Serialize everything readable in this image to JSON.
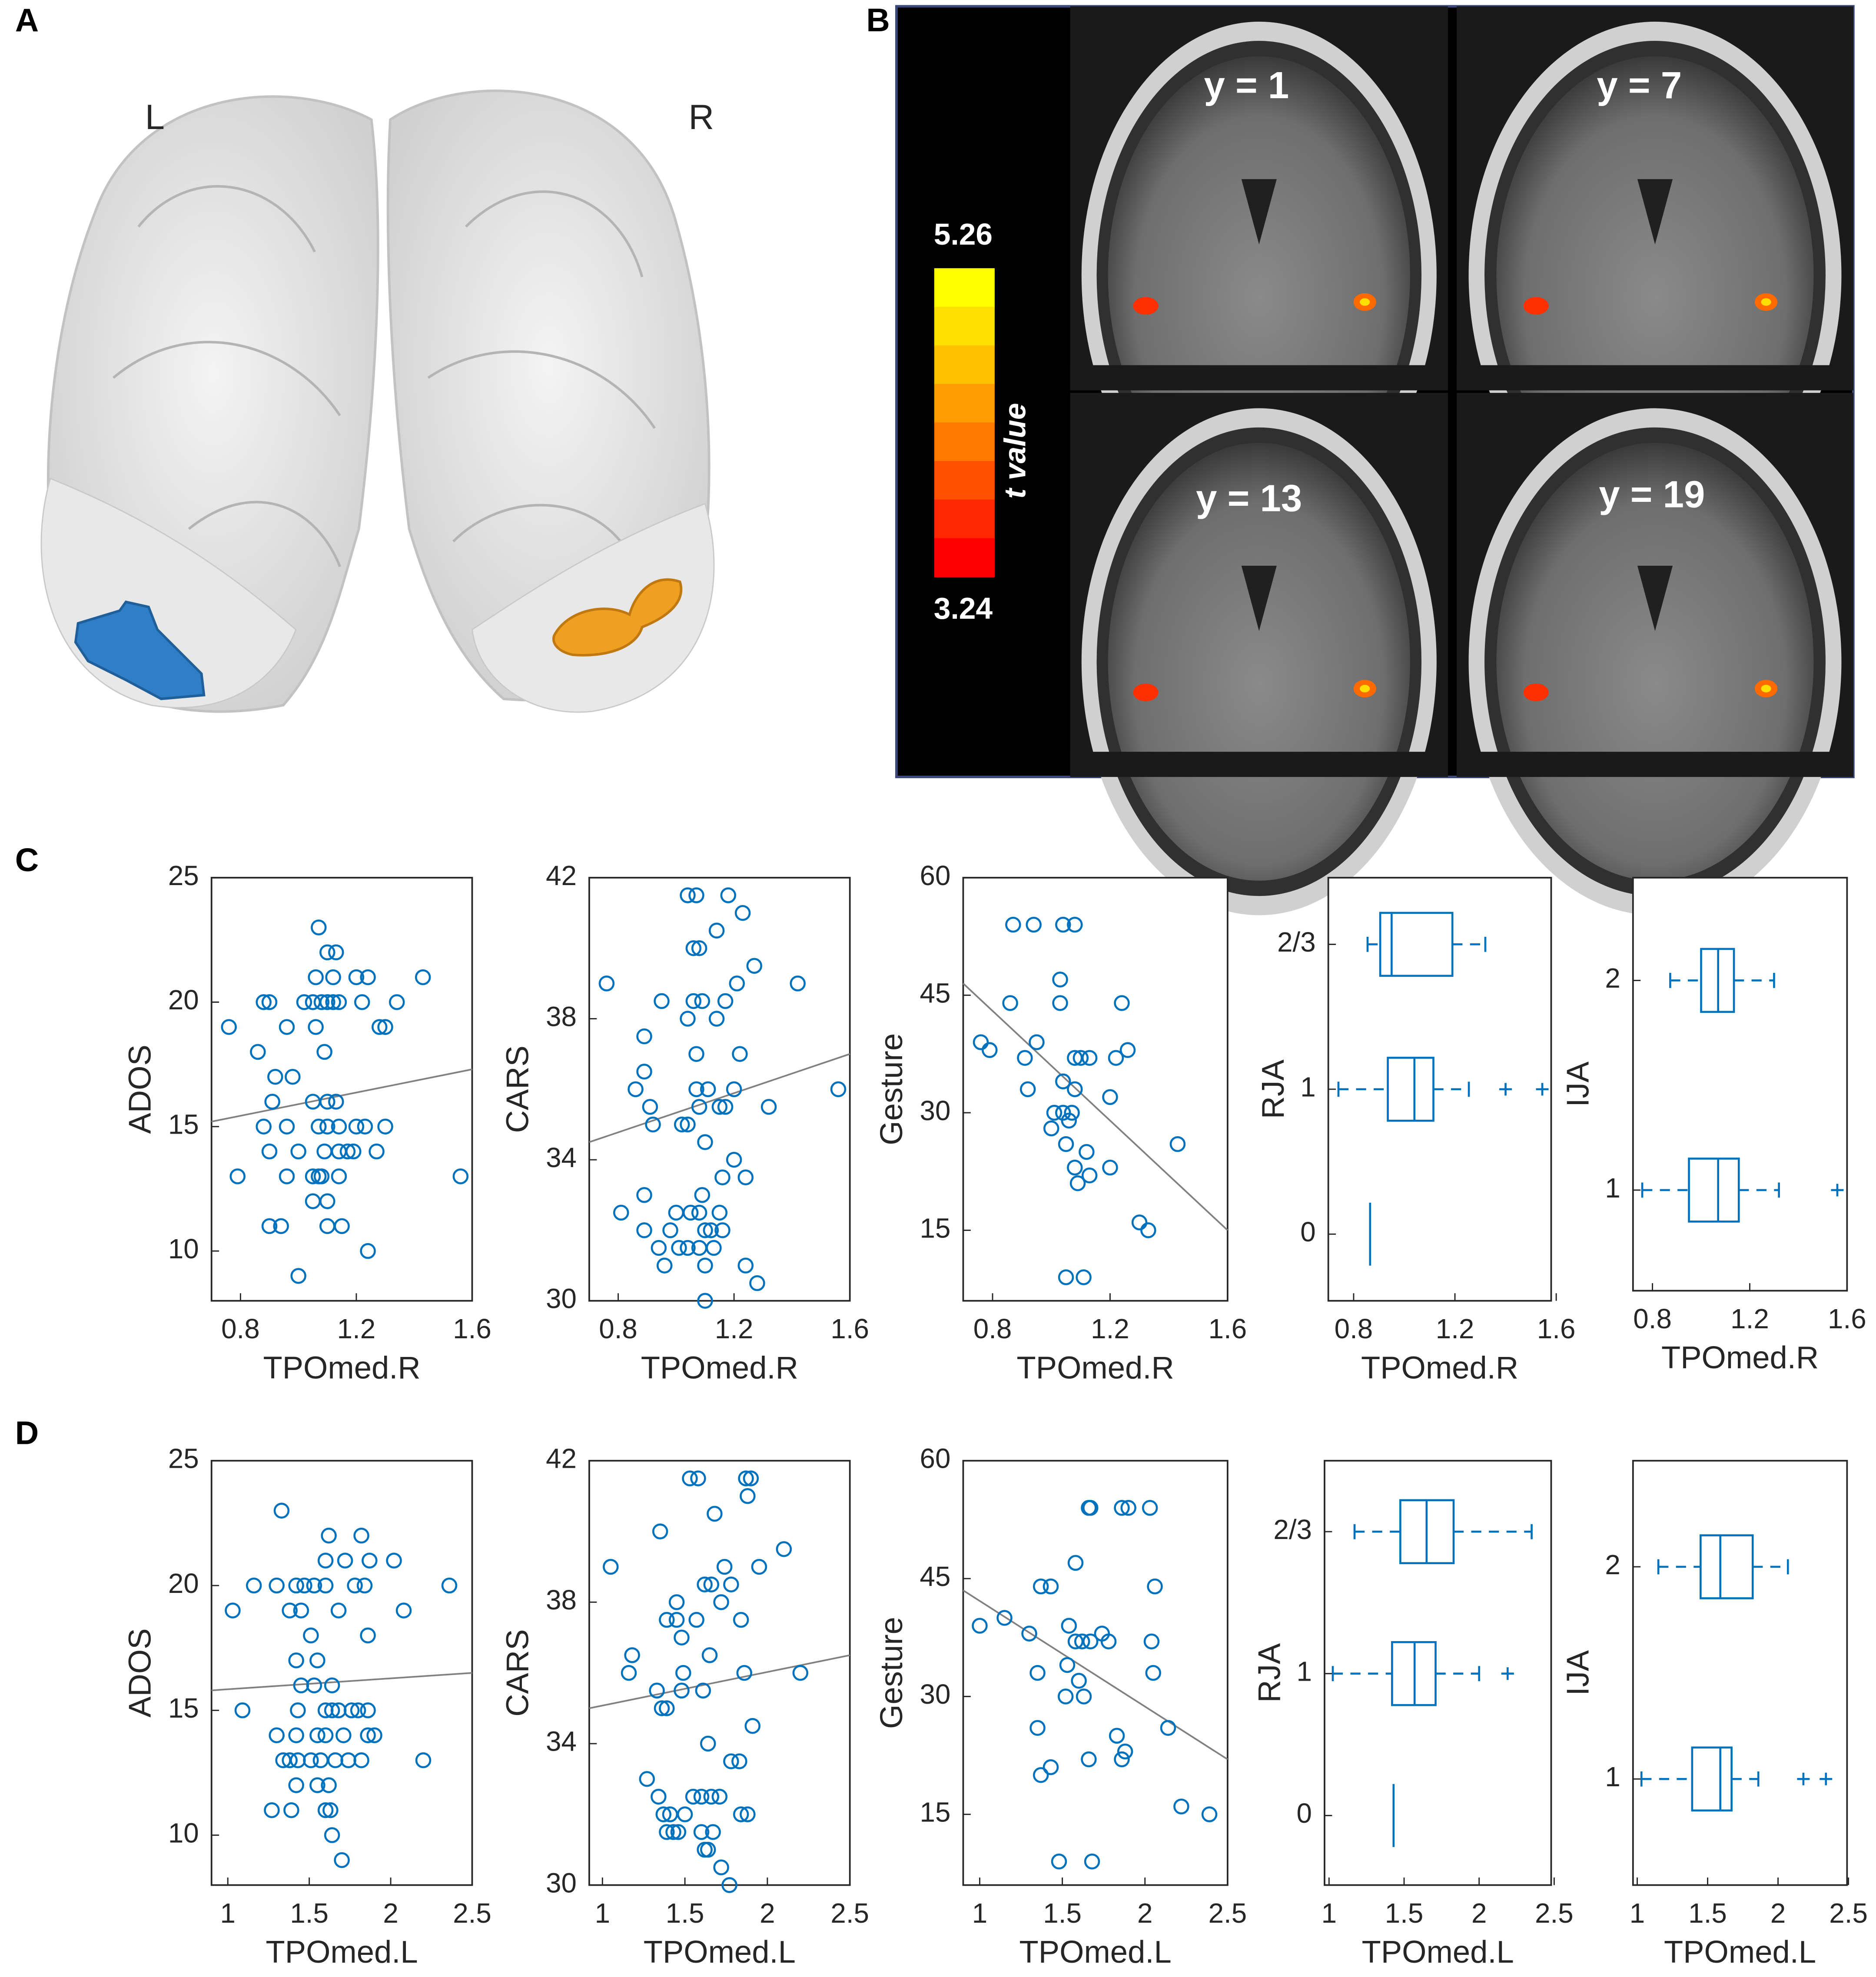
{
  "panels": {
    "A": {
      "letter": "A",
      "left": "L",
      "right": "R"
    },
    "B": {
      "letter": "B",
      "slices": [
        "y = 1",
        "y = 7",
        "y = 13",
        "y = 19"
      ],
      "colorbar": {
        "high": "5.26",
        "low": "3.24",
        "label": "t value",
        "colors": [
          "#ffff00",
          "#ffe000",
          "#ffc000",
          "#ff9c00",
          "#ff7800",
          "#ff5000",
          "#ff2800",
          "#ff0000"
        ]
      }
    },
    "C": {
      "letter": "C"
    },
    "D": {
      "letter": "D"
    }
  },
  "chart_data": [
    {
      "type": "scatter",
      "xlabel": "TPOmed.R",
      "ylabel": "ADOS",
      "color": "#0072bd",
      "xlim": [
        0.7,
        1.6
      ],
      "ylim": [
        8,
        25
      ],
      "xticks": [
        0.8,
        1.2,
        1.6
      ],
      "yticks": [
        10,
        15,
        20,
        25
      ],
      "x": [
        1.07,
        1.1,
        1.13,
        1.06,
        1.12,
        1.2,
        1.24,
        1.43,
        0.88,
        0.9,
        1.02,
        1.05,
        1.08,
        1.1,
        1.12,
        1.14,
        1.22,
        1.34,
        0.76,
        0.96,
        1.06,
        1.28,
        1.3,
        0.86,
        1.09,
        0.92,
        0.98,
        1.05,
        1.1,
        1.13,
        0.91,
        0.88,
        0.96,
        1.07,
        1.1,
        1.14,
        1.2,
        1.23,
        1.3,
        0.9,
        1.0,
        1.09,
        1.14,
        1.17,
        1.19,
        1.27,
        0.79,
        0.96,
        1.05,
        1.07,
        1.08,
        1.14,
        1.56,
        1.05,
        1.1,
        0.9,
        0.94,
        1.1,
        1.15,
        1.24,
        1.0
      ],
      "values": [
        23,
        22,
        22,
        21,
        21,
        21,
        21,
        21,
        20,
        20,
        20,
        20,
        20,
        20,
        20,
        20,
        20,
        20,
        19,
        19,
        19,
        19,
        19,
        18,
        18,
        17,
        17,
        16,
        16,
        16,
        16,
        15,
        15,
        15,
        15,
        15,
        15,
        15,
        15,
        14,
        14,
        14,
        14,
        14,
        14,
        14,
        13,
        13,
        13,
        13,
        13,
        13,
        13,
        12,
        12,
        11,
        11,
        11,
        11,
        10,
        9
      ],
      "trend": {
        "x": [
          0.7,
          1.6
        ],
        "y": [
          15.2,
          17.3
        ]
      }
    },
    {
      "type": "scatter",
      "xlabel": "TPOmed.R",
      "ylabel": "CARS",
      "color": "#0072bd",
      "xlim": [
        0.7,
        1.6
      ],
      "ylim": [
        30,
        42
      ],
      "xticks": [
        0.8,
        1.2,
        1.6
      ],
      "yticks": [
        30,
        34,
        38,
        42
      ],
      "x": [
        1.04,
        1.07,
        1.18,
        1.23,
        1.14,
        1.06,
        1.08,
        0.76,
        1.21,
        1.42,
        1.27,
        0.95,
        1.06,
        1.09,
        1.17,
        1.04,
        1.14,
        0.89,
        1.07,
        1.22,
        0.89,
        0.86,
        1.07,
        1.11,
        1.2,
        1.56,
        0.91,
        1.08,
        1.15,
        1.17,
        1.32,
        0.92,
        1.02,
        1.04,
        1.1,
        1.2,
        1.16,
        1.24,
        0.89,
        1.09,
        0.81,
        1.0,
        1.05,
        1.08,
        1.15,
        0.89,
        0.98,
        1.1,
        1.12,
        1.16,
        0.94,
        1.01,
        1.04,
        1.08,
        1.13,
        0.96,
        1.1,
        1.24,
        1.28,
        1.1
      ],
      "values": [
        41.5,
        41.5,
        41.5,
        41,
        40.5,
        40,
        40,
        39,
        39,
        39,
        39.5,
        38.5,
        38.5,
        38.5,
        38.5,
        38,
        38,
        37.5,
        37,
        37,
        36.5,
        36,
        36,
        36,
        36,
        36,
        35.5,
        35.5,
        35.5,
        35.5,
        35.5,
        35,
        35,
        35,
        34.5,
        34,
        33.5,
        33.5,
        33,
        33,
        32.5,
        32.5,
        32.5,
        32.5,
        32.5,
        32,
        32,
        32,
        32,
        32,
        31.5,
        31.5,
        31.5,
        31.5,
        31.5,
        31,
        31,
        31,
        30.5,
        30
      ],
      "trend": {
        "x": [
          0.7,
          1.6
        ],
        "y": [
          34.5,
          37
        ]
      }
    },
    {
      "type": "scatter",
      "xlabel": "TPOmed.R",
      "ylabel": "Gesture",
      "color": "#0072bd",
      "xlim": [
        0.7,
        1.6
      ],
      "ylim": [
        6,
        60
      ],
      "xticks": [
        0.8,
        1.2,
        1.6
      ],
      "yticks": [
        15,
        30,
        45,
        60
      ],
      "x": [
        0.87,
        0.94,
        1.04,
        1.08,
        1.03,
        0.86,
        1.03,
        1.24,
        0.76,
        0.79,
        0.95,
        0.91,
        1.08,
        1.1,
        1.13,
        1.22,
        1.26,
        1.04,
        1.08,
        0.92,
        1.2,
        1.01,
        1.04,
        1.07,
        1.0,
        1.06,
        1.05,
        1.12,
        1.43,
        1.08,
        1.13,
        1.2,
        1.09,
        1.3,
        1.33,
        1.05,
        1.11
      ],
      "values": [
        54,
        54,
        54,
        54,
        47,
        44,
        44,
        44,
        39,
        38,
        39,
        37,
        37,
        37,
        37,
        37,
        38,
        34,
        33,
        33,
        32,
        30,
        30,
        30,
        28,
        29,
        26,
        25,
        26,
        23,
        22,
        23,
        21,
        16,
        15,
        9,
        9
      ],
      "trend": {
        "x": [
          0.7,
          1.6
        ],
        "y": [
          46.5,
          15
        ]
      }
    },
    {
      "type": "box",
      "xlabel": "TPOmed.R",
      "ylabel": "RJA",
      "color": "#0072bd",
      "xlim": [
        0.7,
        1.58
      ],
      "ylim": [
        -0.46,
        2.46
      ],
      "xticks": [
        0.8,
        1.2,
        1.6
      ],
      "yticks": [
        0,
        1,
        {
          "value": 2,
          "label": "2/3"
        }
      ],
      "boxes": [
        {
          "y": 2,
          "whislo": 0.855,
          "q1": 0.905,
          "med": 0.95,
          "q3": 1.19,
          "whishi": 1.32,
          "fliers": []
        },
        {
          "y": 1,
          "whislo": 0.74,
          "q1": 0.935,
          "med": 1.04,
          "q3": 1.115,
          "whishi": 1.255,
          "fliers": [
            1.4,
            1.545
          ]
        },
        {
          "y": 0,
          "med": 0.865
        }
      ]
    },
    {
      "type": "box",
      "xlabel": "TPOmed.R",
      "ylabel": "IJA",
      "color": "#0072bd",
      "xlim": [
        0.72,
        1.6
      ],
      "ylim": [
        0.52,
        2.49
      ],
      "xticks": [
        0.8,
        1.2,
        1.6
      ],
      "yticks": [
        1,
        2
      ],
      "boxes": [
        {
          "y": 2,
          "whislo": 0.873,
          "q1": 1.0,
          "med": 1.07,
          "q3": 1.135,
          "whishi": 1.3,
          "fliers": []
        },
        {
          "y": 1,
          "whislo": 0.758,
          "q1": 0.95,
          "med": 1.07,
          "q3": 1.155,
          "whishi": 1.32,
          "fliers": [
            1.56
          ]
        }
      ]
    },
    {
      "type": "scatter",
      "xlabel": "TPOmed.L",
      "ylabel": "ADOS",
      "color": "#0072bd",
      "xlim": [
        0.9,
        2.5
      ],
      "ylim": [
        8,
        25
      ],
      "xticks": [
        1,
        1.5,
        2,
        2.5
      ],
      "yticks": [
        10,
        15,
        20,
        25
      ],
      "x": [
        1.33,
        1.62,
        1.82,
        1.6,
        1.72,
        1.87,
        2.02,
        1.16,
        1.3,
        1.42,
        1.47,
        1.53,
        1.6,
        1.78,
        1.84,
        2.36,
        1.03,
        1.38,
        1.45,
        1.68,
        2.08,
        1.51,
        1.86,
        1.42,
        1.55,
        1.45,
        1.53,
        1.64,
        1.09,
        1.43,
        1.6,
        1.64,
        1.68,
        1.76,
        1.8,
        1.86,
        1.3,
        1.42,
        1.55,
        1.6,
        1.71,
        1.86,
        1.9,
        1.34,
        1.38,
        1.43,
        1.51,
        1.57,
        1.66,
        1.74,
        1.82,
        2.2,
        1.42,
        1.55,
        1.62,
        1.27,
        1.39,
        1.6,
        1.63,
        1.64,
        1.7
      ],
      "values": [
        23,
        22,
        22,
        21,
        21,
        21,
        21,
        20,
        20,
        20,
        20,
        20,
        20,
        20,
        20,
        20,
        19,
        19,
        19,
        19,
        19,
        18,
        18,
        17,
        17,
        16,
        16,
        16,
        15,
        15,
        15,
        15,
        15,
        15,
        15,
        15,
        14,
        14,
        14,
        14,
        14,
        14,
        14,
        13,
        13,
        13,
        13,
        13,
        13,
        13,
        13,
        13,
        12,
        12,
        12,
        11,
        11,
        11,
        11,
        10,
        9
      ],
      "trend": {
        "x": [
          0.9,
          2.5
        ],
        "y": [
          15.8,
          16.5
        ]
      }
    },
    {
      "type": "scatter",
      "xlabel": "TPOmed.L",
      "ylabel": "CARS",
      "color": "#0072bd",
      "xlim": [
        0.92,
        2.5
      ],
      "ylim": [
        30,
        42
      ],
      "xticks": [
        1,
        1.5,
        2,
        2.5
      ],
      "yticks": [
        30,
        34,
        38,
        42
      ],
      "x": [
        1.53,
        1.58,
        1.87,
        1.9,
        1.88,
        1.68,
        1.35,
        1.05,
        1.74,
        1.95,
        2.1,
        1.62,
        1.66,
        1.78,
        1.45,
        1.72,
        1.39,
        1.45,
        1.57,
        1.84,
        1.48,
        1.65,
        1.18,
        1.16,
        1.49,
        1.86,
        2.2,
        1.33,
        1.48,
        1.61,
        1.91,
        1.36,
        1.39,
        1.64,
        1.78,
        1.83,
        1.27,
        1.34,
        1.55,
        1.6,
        1.66,
        1.71,
        1.84,
        1.88,
        1.37,
        1.41,
        1.5,
        1.39,
        1.43,
        1.46,
        1.6,
        1.67,
        1.62,
        1.64,
        1.72,
        1.77
      ],
      "values": [
        41.5,
        41.5,
        41.5,
        41.5,
        41,
        40.5,
        40,
        39,
        39,
        39,
        39.5,
        38.5,
        38.5,
        38.5,
        38,
        38,
        37.5,
        37.5,
        37.5,
        37.5,
        37,
        36.5,
        36.5,
        36,
        36,
        36,
        36,
        35.5,
        35.5,
        35.5,
        34.5,
        35,
        35,
        34,
        33.5,
        33.5,
        33,
        32.5,
        32.5,
        32.5,
        32.5,
        32.5,
        32,
        32,
        32,
        32,
        32,
        31.5,
        31.5,
        31.5,
        31.5,
        31.5,
        31,
        31,
        30.5,
        30
      ],
      "trend": {
        "x": [
          0.92,
          2.5
        ],
        "y": [
          35,
          36.5
        ]
      }
    },
    {
      "type": "scatter",
      "xlabel": "TPOmed.L",
      "ylabel": "Gesture",
      "color": "#0072bd",
      "xlim": [
        0.9,
        2.5
      ],
      "ylim": [
        6,
        60
      ],
      "xticks": [
        1,
        1.5,
        2,
        2.5
      ],
      "yticks": [
        15,
        30,
        45,
        60
      ],
      "x": [
        1.66,
        1.67,
        1.86,
        1.9,
        2.03,
        1.58,
        1.37,
        1.43,
        2.06,
        1.0,
        1.15,
        1.3,
        1.54,
        1.58,
        1.62,
        1.67,
        1.78,
        1.74,
        2.04,
        1.35,
        1.53,
        1.6,
        1.52,
        1.63,
        2.05,
        2.14,
        1.35,
        1.66,
        1.83,
        1.86,
        1.88,
        1.37,
        1.43,
        2.22,
        2.39,
        1.48,
        1.68
      ],
      "values": [
        54,
        54,
        54,
        54,
        54,
        47,
        44,
        44,
        44,
        39,
        40,
        38,
        39,
        37,
        37,
        37,
        37,
        38,
        37,
        33,
        34,
        32,
        30,
        30,
        33,
        26,
        26,
        22,
        25,
        22,
        23,
        20,
        21,
        16,
        15,
        9,
        9
      ],
      "trend": {
        "x": [
          0.9,
          2.5
        ],
        "y": [
          43.5,
          22
        ]
      }
    },
    {
      "type": "box",
      "xlabel": "TPOmed.L",
      "ylabel": "RJA",
      "color": "#0072bd",
      "xlim": [
        0.97,
        2.48
      ],
      "ylim": [
        -0.49,
        2.5
      ],
      "xticks": [
        1,
        1.5,
        2,
        2.5
      ],
      "yticks": [
        0,
        1,
        {
          "value": 2,
          "label": "2/3"
        }
      ],
      "boxes": [
        {
          "y": 2,
          "whislo": 1.17,
          "q1": 1.475,
          "med": 1.65,
          "q3": 1.83,
          "whishi": 2.35,
          "fliers": []
        },
        {
          "y": 1,
          "whislo": 1.025,
          "q1": 1.42,
          "med": 1.57,
          "q3": 1.71,
          "whishi": 2.0,
          "fliers": [
            2.19
          ]
        },
        {
          "y": 0,
          "med": 1.43
        }
      ]
    },
    {
      "type": "box",
      "xlabel": "TPOmed.L",
      "ylabel": "IJA",
      "color": "#0072bd",
      "xlim": [
        0.97,
        2.49
      ],
      "ylim": [
        0.5,
        2.5
      ],
      "xticks": [
        1,
        1.5,
        2,
        2.5
      ],
      "yticks": [
        1,
        2
      ],
      "boxes": [
        {
          "y": 2,
          "whislo": 1.15,
          "q1": 1.45,
          "med": 1.59,
          "q3": 1.82,
          "whishi": 2.07,
          "fliers": []
        },
        {
          "y": 1,
          "whislo": 1.03,
          "q1": 1.39,
          "med": 1.59,
          "q3": 1.67,
          "whishi": 1.86,
          "fliers": [
            2.18,
            2.34
          ]
        }
      ]
    }
  ]
}
